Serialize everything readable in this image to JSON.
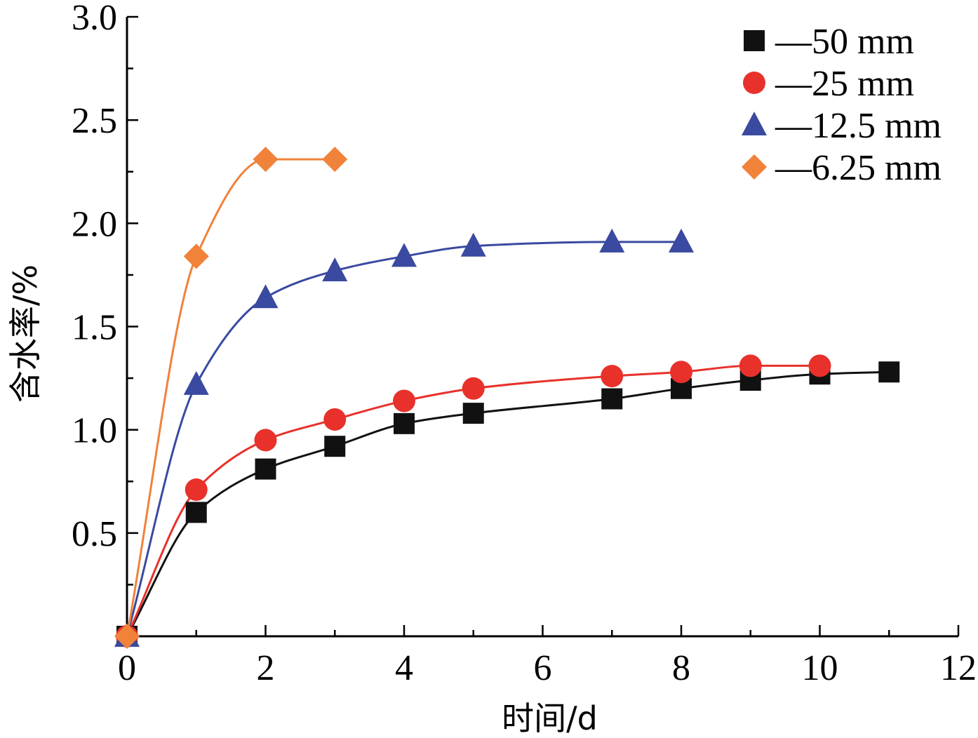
{
  "chart_data": {
    "type": "line",
    "xlabel": "时间/d",
    "ylabel": "含水率/%",
    "xlim": [
      0,
      12
    ],
    "ylim": [
      0,
      3.0
    ],
    "x_ticks": [
      "0",
      "2",
      "4",
      "6",
      "8",
      "10",
      "12"
    ],
    "y_ticks": [
      "0.5",
      "1.0",
      "1.5",
      "2.0",
      "2.5",
      "3.0"
    ],
    "grid": false,
    "legend_position": "top-right",
    "series": [
      {
        "name": "—50 mm",
        "marker": "square",
        "color": "#111111",
        "line_color": "#111111",
        "x": [
          0,
          1,
          2,
          3,
          4,
          5,
          7,
          8,
          9,
          10,
          11
        ],
        "y": [
          0,
          0.6,
          0.81,
          0.92,
          1.03,
          1.08,
          1.15,
          1.2,
          1.24,
          1.27,
          1.28
        ]
      },
      {
        "name": "—25 mm",
        "marker": "circle",
        "color": "#e8312b",
        "line_color": "#e8312b",
        "x": [
          0,
          1,
          2,
          3,
          4,
          5,
          7,
          8,
          9,
          10
        ],
        "y": [
          0,
          0.71,
          0.95,
          1.05,
          1.14,
          1.2,
          1.26,
          1.28,
          1.31,
          1.31
        ]
      },
      {
        "name": "—12.5 mm",
        "marker": "triangle",
        "color": "#3a4aa0",
        "line_color": "#3a4aa0",
        "x": [
          0,
          1,
          2,
          3,
          4,
          5,
          7,
          8
        ],
        "y": [
          0,
          1.22,
          1.64,
          1.77,
          1.84,
          1.89,
          1.91,
          1.91
        ]
      },
      {
        "name": "—6.25 mm",
        "marker": "diamond",
        "color": "#f0823a",
        "line_color": "#f0823a",
        "x": [
          0,
          1,
          2,
          3
        ],
        "y": [
          0,
          1.84,
          2.31,
          2.31
        ]
      }
    ]
  }
}
